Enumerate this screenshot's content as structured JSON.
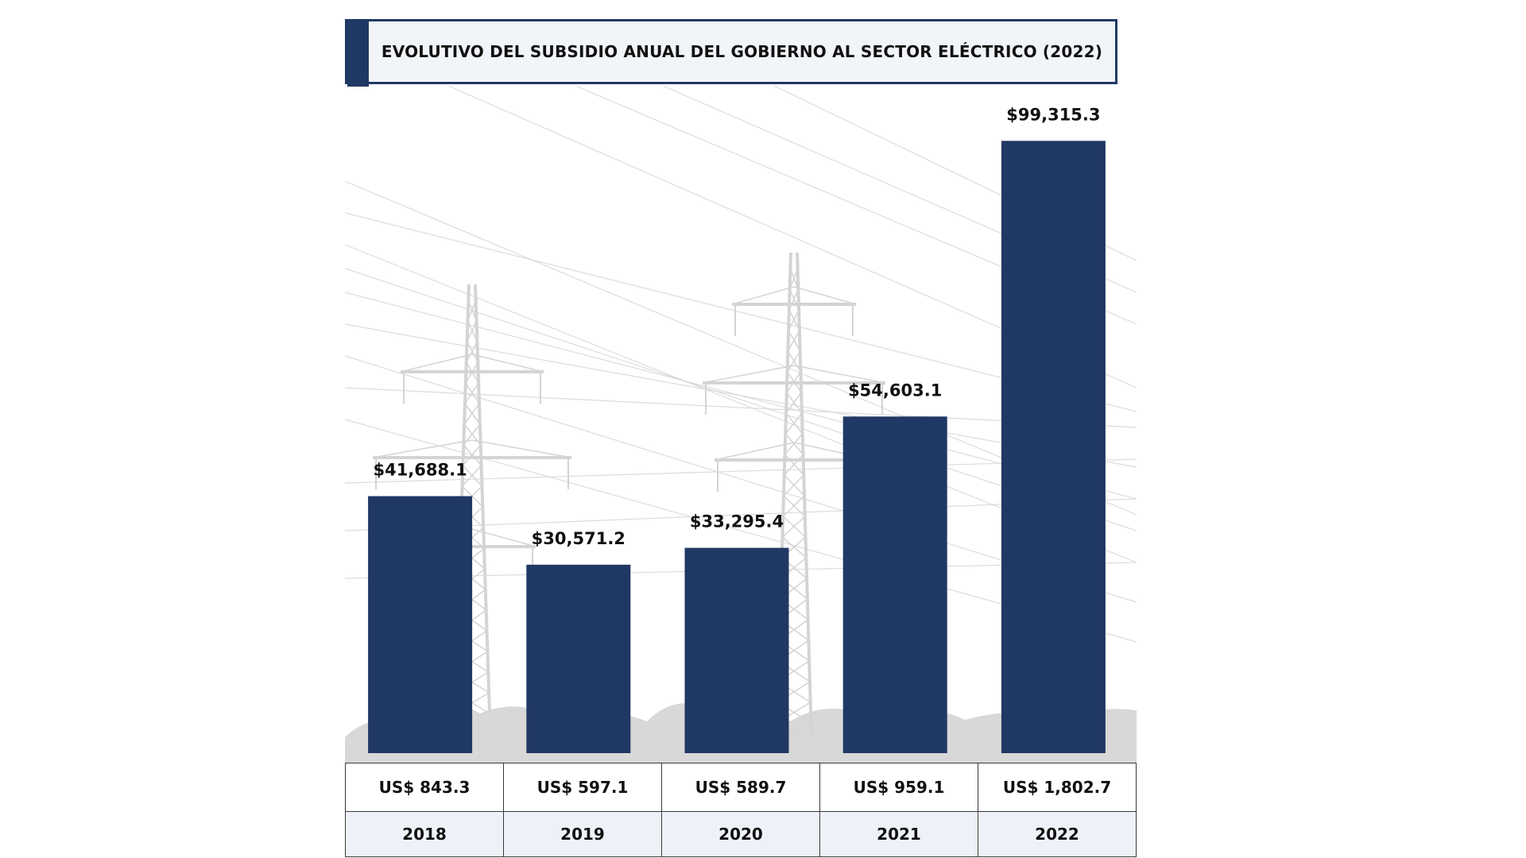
{
  "colors": {
    "bar": "#203864",
    "title_accent": "#203864",
    "title_bg": "#f1f4f9",
    "background_art": "#d4d4d4"
  },
  "background_icon": "electricity-pylons-icon",
  "chart_data": {
    "type": "bar",
    "title": "EVOLUTIVO DEL SUBSIDIO ANUAL DEL GOBIERNO AL SECTOR ELÉCTRICO (2022)",
    "categories": [
      "2018",
      "2019",
      "2020",
      "2021",
      "2022"
    ],
    "values": [
      41688.1,
      30571.2,
      33295.4,
      54603.1,
      99315.3
    ],
    "value_labels": [
      "$41,688.1",
      "$30,571.2",
      "$33,295.4",
      "$54,603.1",
      "$99,315.3"
    ],
    "usd_labels": [
      "US$ 843.3",
      "US$ 597.1",
      "US$ 589.7",
      "US$ 959.1",
      "US$ 1,802.7"
    ],
    "ylim": [
      0,
      100000
    ],
    "grid": false,
    "legend": "none"
  }
}
